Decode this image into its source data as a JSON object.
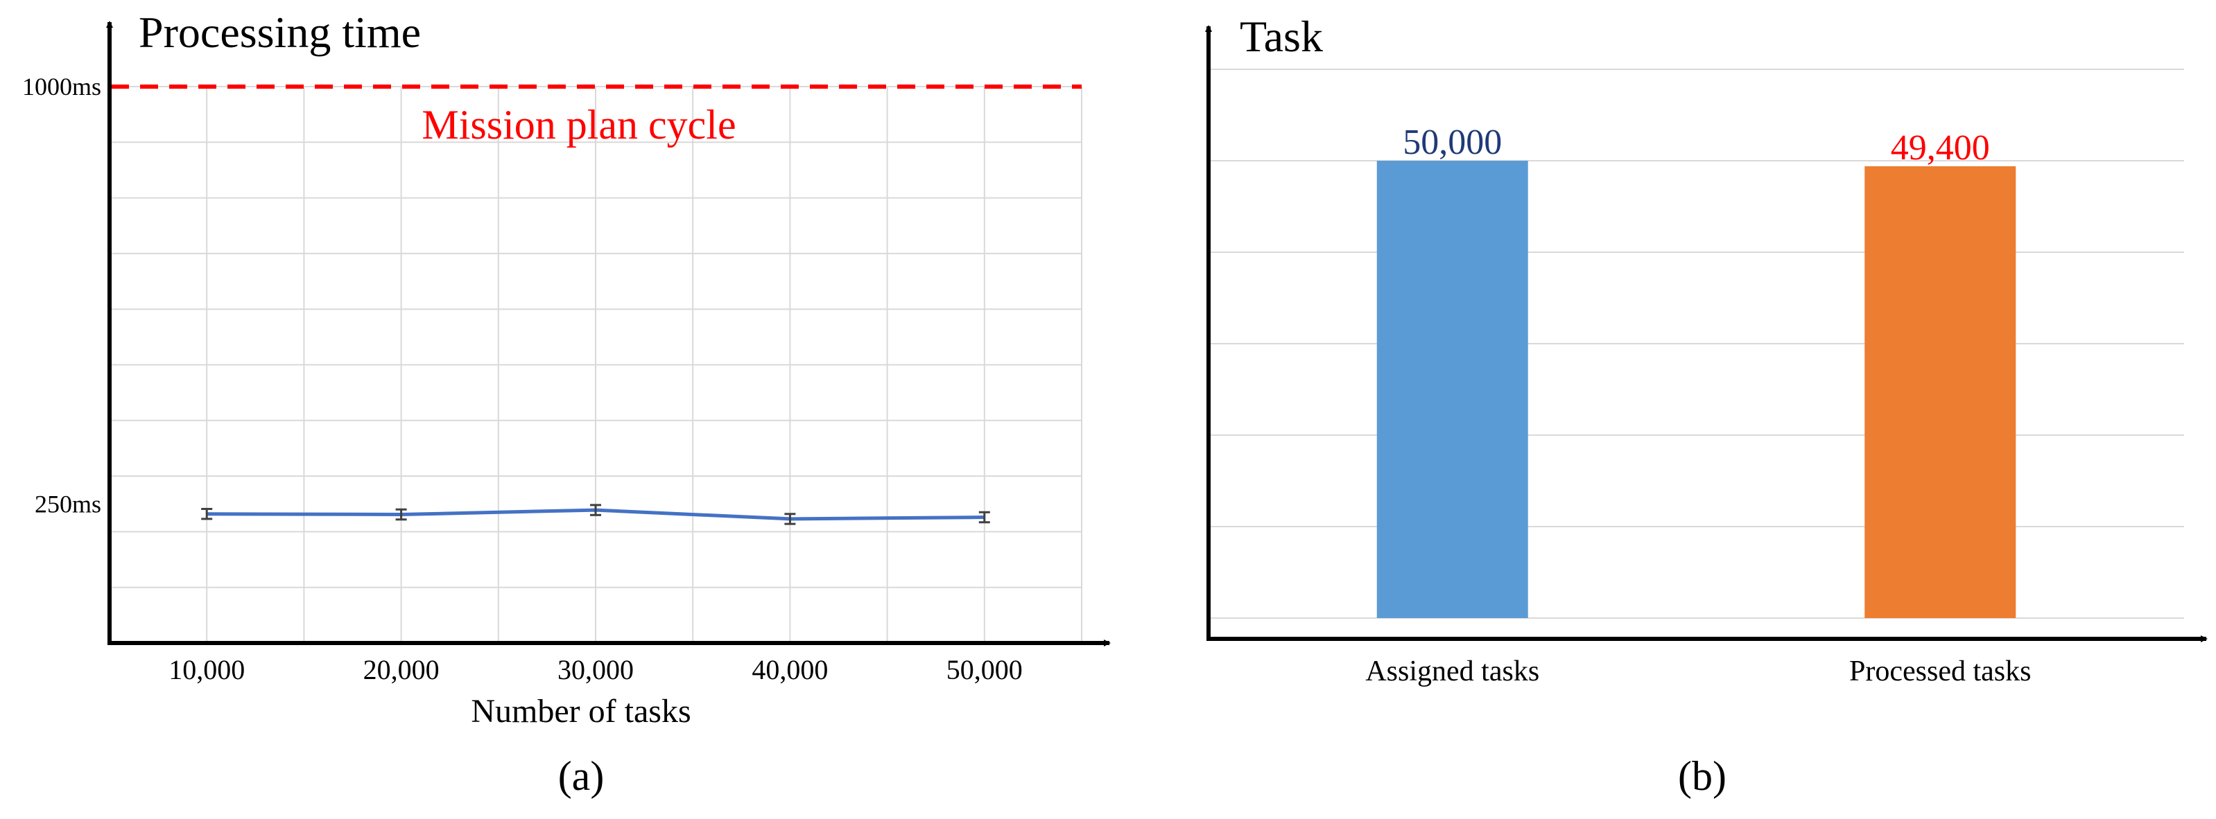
{
  "colors": {
    "axis": "#000000",
    "grid": "#d9d9d9",
    "line": "#4472c4",
    "errorbar": "#404040",
    "threshold": "#ff0000",
    "bar_assigned": "#5b9bd5",
    "bar_processed": "#ed7d31",
    "label_assigned": "#1f3a78",
    "label_processed": "#ff0000"
  },
  "chart_data": [
    {
      "type": "line",
      "panel_label": "(a)",
      "ylabel": "Processing time",
      "xlabel": "Number of tasks",
      "categories": [
        "10,000",
        "20,000",
        "30,000",
        "40,000",
        "50,000"
      ],
      "values": [
        232,
        231,
        239,
        223,
        226
      ],
      "error": [
        9,
        9,
        9,
        9,
        9
      ],
      "ylim": [
        0,
        1000
      ],
      "yticks_labeled": [
        {
          "value": 1000,
          "label": "1000ms"
        },
        {
          "value": 250,
          "label": "250ms"
        }
      ],
      "grid": true,
      "threshold": {
        "value": 1000,
        "label": "Mission plan cycle"
      }
    },
    {
      "type": "bar",
      "panel_label": "(b)",
      "ylabel": "Task",
      "categories": [
        "Assigned tasks",
        "Processed tasks"
      ],
      "values": [
        50000,
        49400
      ],
      "value_labels": [
        "50,000",
        "49,400"
      ],
      "ylim": [
        0,
        60000
      ],
      "grid": true
    }
  ]
}
